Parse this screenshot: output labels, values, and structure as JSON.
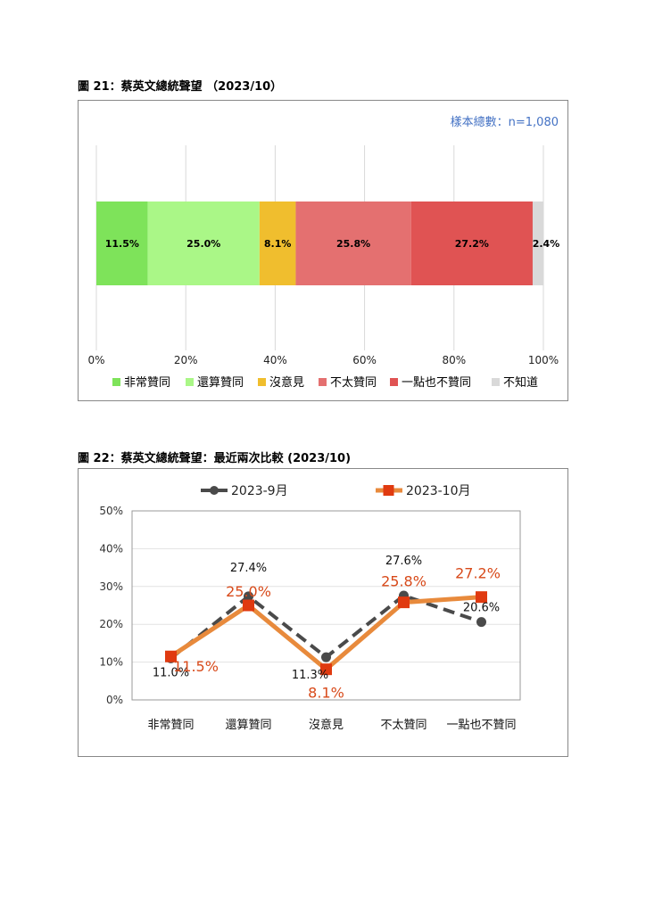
{
  "figure1": {
    "title": "圖 21：蔡英文總統聲望 （2023/10）",
    "sample_note": "樣本總數：n=1,080"
  },
  "figure2": {
    "title": "圖 22：蔡英文總統聲望：最近兩次比較 (2023/10)"
  },
  "chart_data": [
    {
      "type": "bar",
      "stacked": "100%",
      "orientation": "horizontal",
      "xlim": [
        0,
        100
      ],
      "xticks": [
        "0%",
        "20%",
        "40%",
        "60%",
        "80%",
        "100%"
      ],
      "grid": true,
      "legend_position": "bottom",
      "series": [
        {
          "name": "非常贊同",
          "values": [
            11.5
          ],
          "label": "11.5%",
          "color": "#7ee35a"
        },
        {
          "name": "還算贊同",
          "values": [
            25.0
          ],
          "label": "25.0%",
          "color": "#aaf787"
        },
        {
          "name": "沒意見",
          "values": [
            8.1
          ],
          "label": "8.1%",
          "color": "#f0be2e"
        },
        {
          "name": "不太贊同",
          "values": [
            25.8
          ],
          "label": "25.8%",
          "color": "#e47070"
        },
        {
          "name": "一點也不贊同",
          "values": [
            27.2
          ],
          "label": "27.2%",
          "color": "#e05353"
        },
        {
          "name": "不知道",
          "values": [
            2.4
          ],
          "label": "2.4%",
          "color": "#d9d9d9"
        }
      ]
    },
    {
      "type": "line",
      "categories": [
        "非常贊同",
        "還算贊同",
        "沒意見",
        "不太贊同",
        "一點也不贊同"
      ],
      "ylim": [
        0,
        50
      ],
      "yticks": [
        "0%",
        "10%",
        "20%",
        "30%",
        "40%",
        "50%"
      ],
      "grid": true,
      "legend_position": "top",
      "series": [
        {
          "name": "2023-9月",
          "values": [
            11.0,
            27.4,
            11.3,
            27.6,
            20.6
          ],
          "labels": [
            "11.0%",
            "27.4%",
            "11.3%",
            "27.6%",
            "20.6%"
          ],
          "color": "#4a4a4a",
          "dash": true,
          "marker": "circle"
        },
        {
          "name": "2023-10月",
          "values": [
            11.5,
            25.0,
            8.1,
            25.8,
            27.2
          ],
          "labels": [
            "11.5%",
            "25.0%",
            "8.1%",
            "25.8%",
            "27.2%"
          ],
          "color": "#e88a3c",
          "label_color": "#d84a1a",
          "marker": "square",
          "marker_color": "#e03a10"
        }
      ]
    }
  ]
}
